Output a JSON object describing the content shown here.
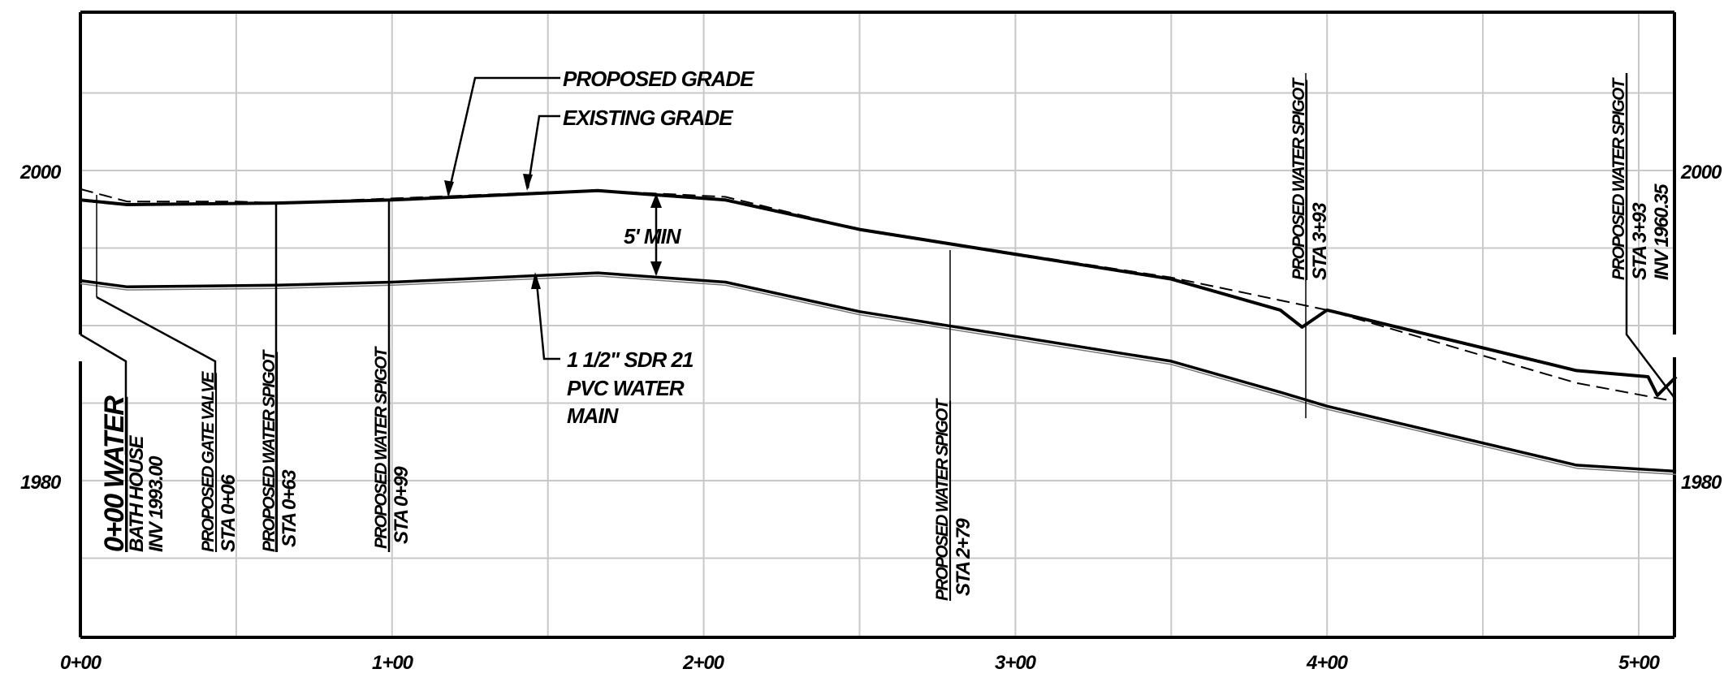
{
  "chart_data": {
    "type": "line",
    "x_ticks": [
      "0+00",
      "1+00",
      "2+00",
      "3+00",
      "4+00",
      "5+00"
    ],
    "y_ticks_left": [
      "2000",
      "1980"
    ],
    "y_ticks_right": [
      "2000",
      "1980"
    ],
    "x_range_ft": [
      0,
      512
    ],
    "y_range_ft": [
      1970,
      2010
    ],
    "grid": true,
    "series": [
      {
        "name": "PROPOSED GRADE",
        "style": "solid-heavy",
        "x": [
          0,
          15,
          63,
          100,
          166,
          207,
          250,
          350,
          385,
          392,
          400,
          480,
          503,
          506,
          512
        ],
        "y": [
          1998.1,
          1997.8,
          1997.9,
          1998.1,
          1998.7,
          1998.1,
          1996.2,
          1993.0,
          1991.0,
          1989.9,
          1991.0,
          1987.1,
          1986.7,
          1985.5,
          1986.7
        ]
      },
      {
        "name": "EXISTING GRADE",
        "style": "dashed",
        "x": [
          0,
          15,
          50,
          63,
          100,
          150,
          166,
          207,
          250,
          350,
          400,
          480,
          512
        ],
        "y": [
          1998.8,
          1998.0,
          1998.0,
          1997.9,
          1998.2,
          1998.6,
          1998.7,
          1998.3,
          1996.2,
          1993.1,
          1991.0,
          1986.3,
          1985.1
        ]
      },
      {
        "name": "1 1/2\" SDR 21 PVC WATER MAIN",
        "style": "double-line",
        "x": [
          0,
          15,
          63,
          100,
          166,
          207,
          250,
          350,
          385,
          400,
          480,
          512
        ],
        "y": [
          1992.9,
          1992.5,
          1992.6,
          1992.8,
          1993.4,
          1992.8,
          1990.9,
          1987.7,
          1985.7,
          1984.8,
          1981.0,
          1980.6
        ]
      }
    ]
  },
  "annotations": {
    "proposed_grade": "PROPOSED GRADE",
    "existing_grade": "EXISTING GRADE",
    "cover": "5' MIN",
    "main_line1": "1 1/2\" SDR 21",
    "main_line2": "PVC WATER",
    "main_line3": "MAIN"
  },
  "callouts": {
    "bath_house": {
      "title": "0+00 WATER",
      "line2": "BATH HOUSE",
      "line3": "INV 1993.00"
    },
    "gate_valve": {
      "title": "PROPOSED GATE VALVE",
      "sta": "STA 0+06"
    },
    "spigot_063": {
      "title": "PROPOSED WATER SPIGOT",
      "sta": "STA 0+63"
    },
    "spigot_099": {
      "title": "PROPOSED WATER SPIGOT",
      "sta": "STA 0+99"
    },
    "spigot_279": {
      "title": "PROPOSED WATER SPIGOT",
      "sta": "STA 2+79"
    },
    "spigot_393": {
      "title": "PROPOSED WATER SPIGOT",
      "sta": "STA 3+93"
    },
    "spigot_end": {
      "title": "PROPOSED WATER SPIGOT",
      "sta": "STA 3+93",
      "inv": "INV 1960.35"
    }
  }
}
